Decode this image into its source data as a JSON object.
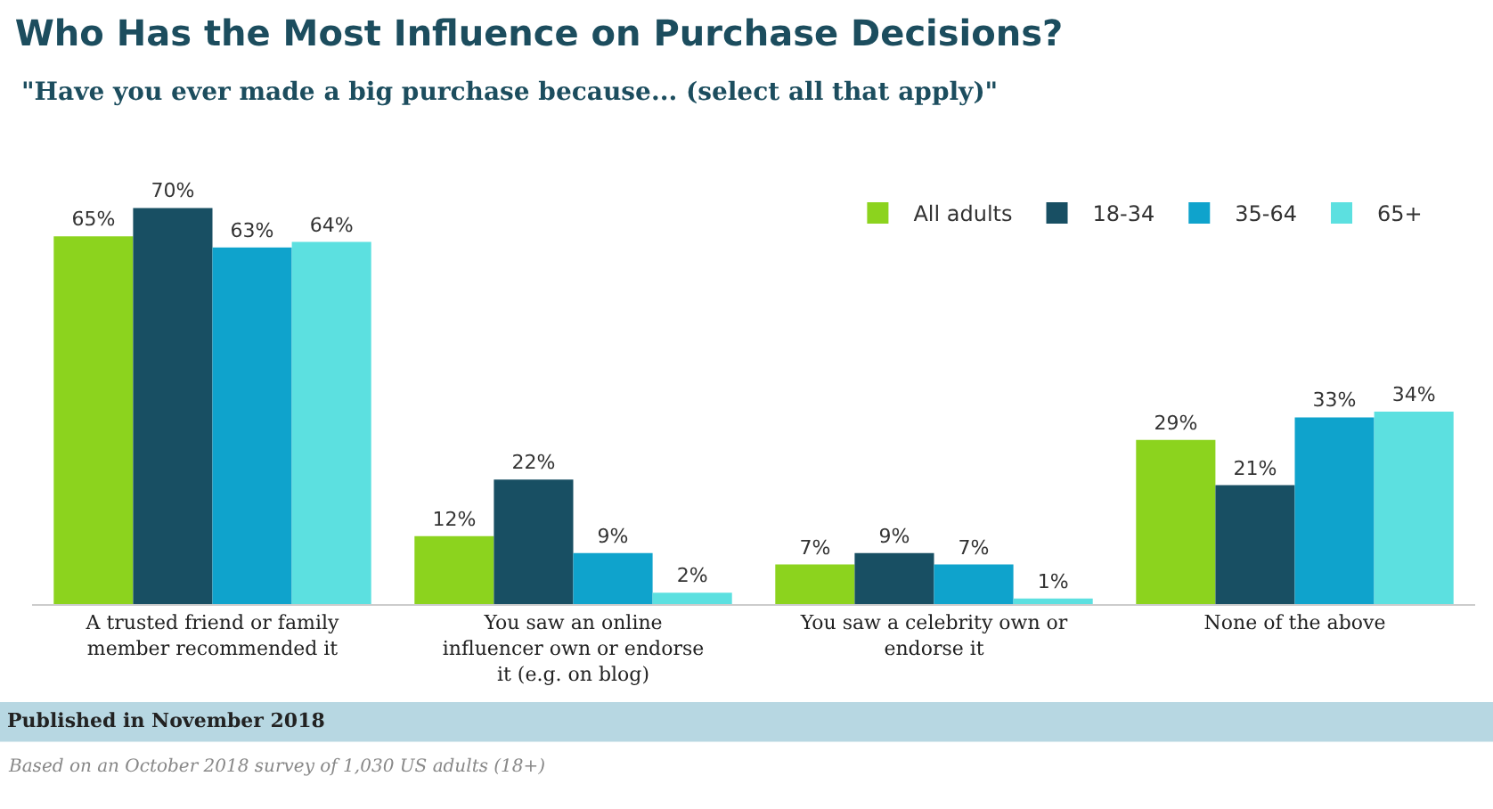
{
  "chart_data": {
    "type": "bar",
    "title": "Who Has the Most Influence on Purchase Decisions?",
    "subtitle": "\"Have you ever made a big purchase because... (select all that apply)\"",
    "categories": [
      "A trusted friend or family member recommended it",
      "You saw an online influencer own or endorse it (e.g. on blog)",
      "You saw a celebrity own or endorse it",
      "None of the above"
    ],
    "series": [
      {
        "name": "All adults",
        "color": "#8cd31e",
        "values": [
          65,
          12,
          7,
          29
        ],
        "value_labels": [
          "65%",
          "12%",
          "7%",
          "29%"
        ]
      },
      {
        "name": "18-34",
        "color": "#184f63",
        "values": [
          70,
          22,
          9,
          21
        ],
        "value_labels": [
          "70%",
          "22%",
          "9%",
          "21%"
        ]
      },
      {
        "name": "35-64",
        "color": "#0fa3cc",
        "values": [
          63,
          9,
          7,
          33
        ],
        "value_labels": [
          "63%",
          "9%",
          "7%",
          "33%"
        ]
      },
      {
        "name": "65+",
        "color": "#5ce0e0",
        "values": [
          64,
          2,
          1,
          34
        ],
        "value_labels": [
          "64%",
          "2%",
          "1%",
          "34%"
        ]
      }
    ],
    "tick_labels": "x",
    "grid": false,
    "legend": "top right",
    "annotations": [
      "Published in November 2018",
      "Based on an October 2018 survey of 1,030 US adults (18+)"
    ]
  }
}
